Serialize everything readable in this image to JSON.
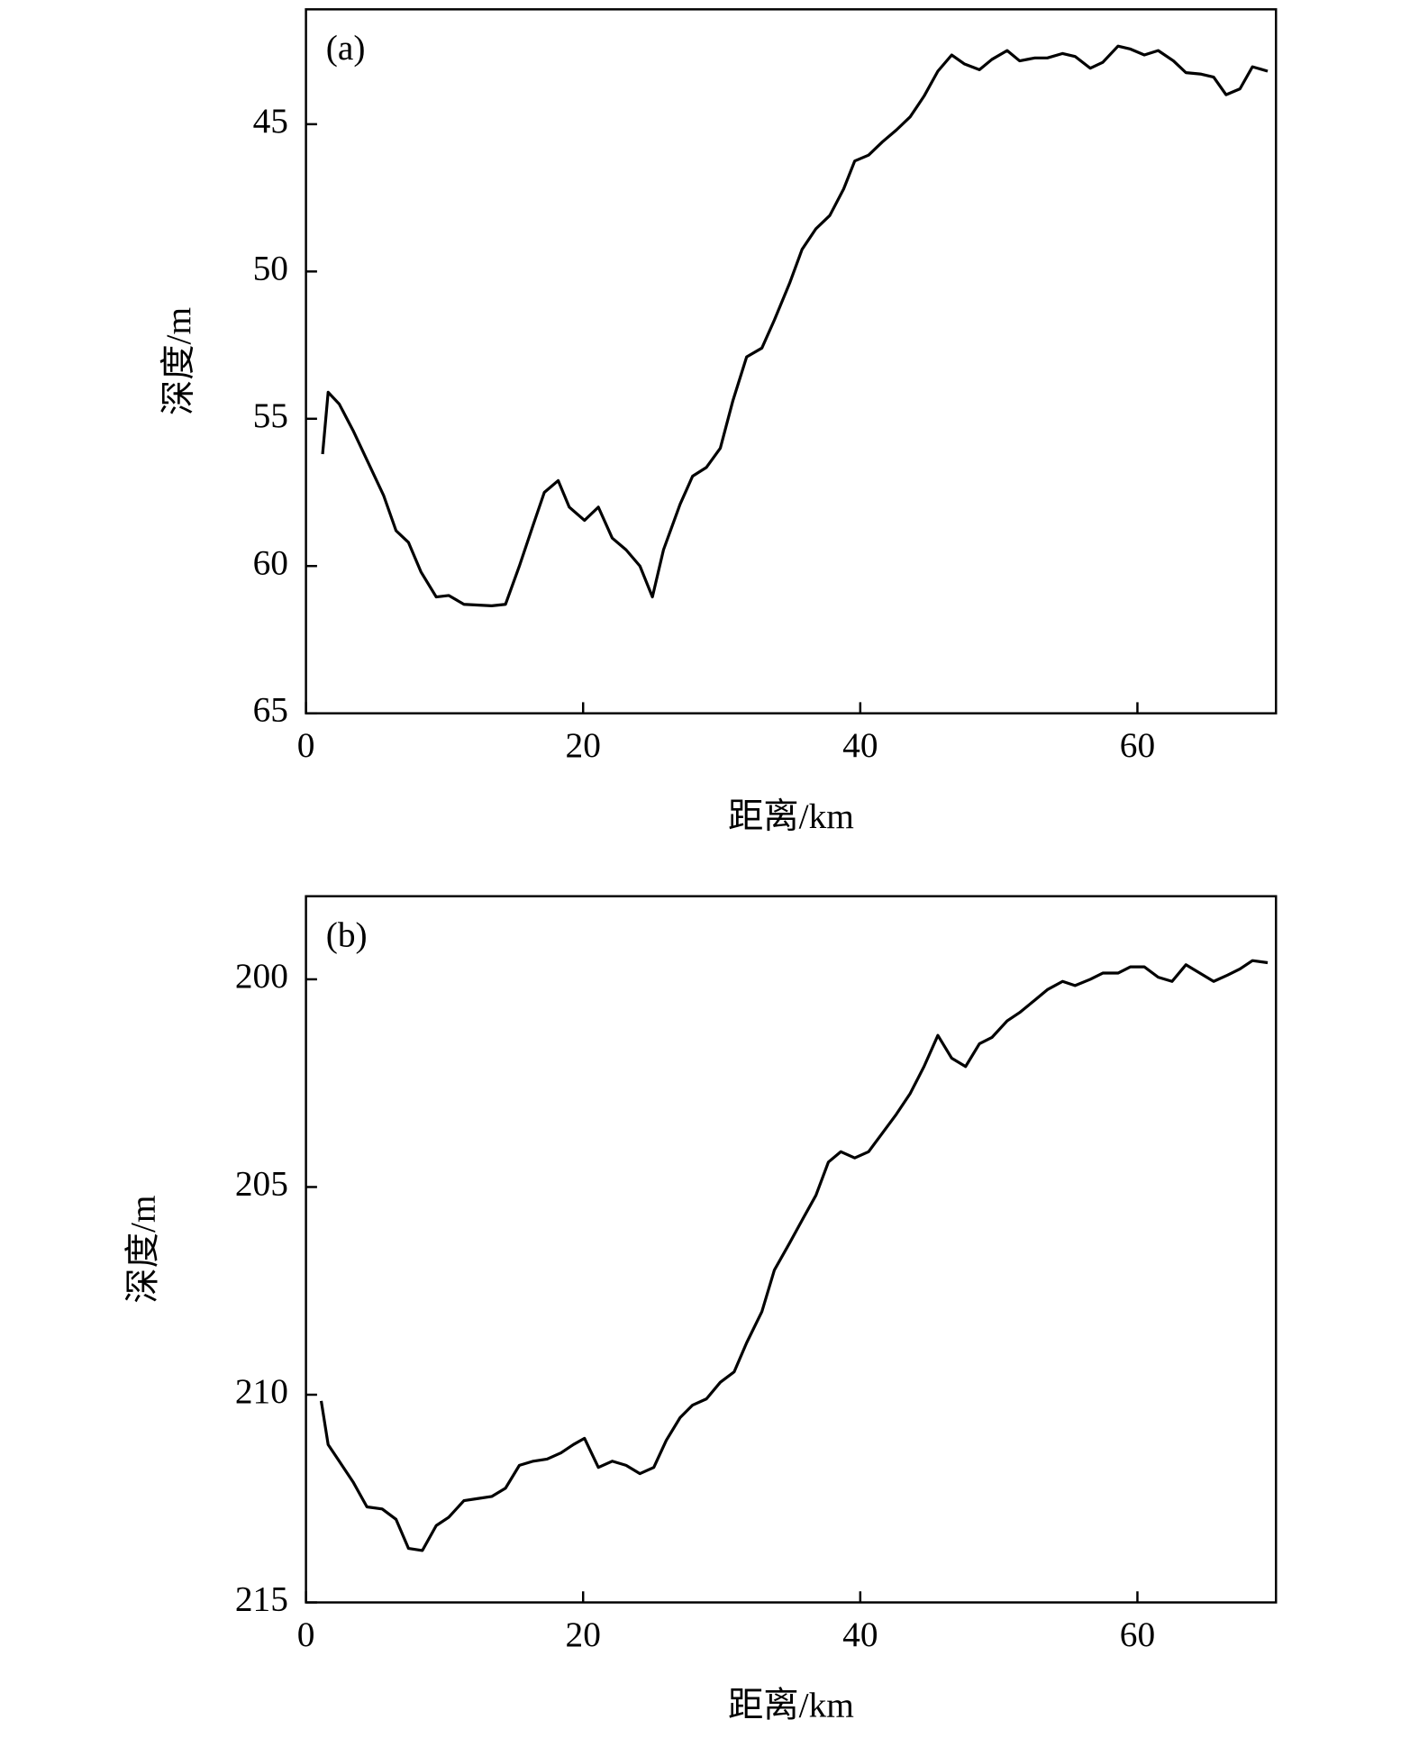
{
  "chart_data": [
    {
      "type": "line",
      "label": "(a)",
      "xlabel": "距离/km",
      "ylabel": "深度/m",
      "color": "#000000",
      "y_inverted": true,
      "xlim": [
        0,
        70
      ],
      "xticks": [
        0,
        20,
        40,
        60
      ],
      "ylim": [
        41.1,
        65
      ],
      "yticks": [
        45,
        50,
        55,
        60,
        65
      ],
      "x": [
        1.2,
        1.6,
        2.4,
        3.4,
        4.5,
        5.6,
        6.5,
        7.4,
        8.3,
        9.4,
        10.3,
        11.4,
        13.4,
        14.4,
        15.4,
        16.4,
        17.2,
        18.2,
        19.0,
        20.1,
        21.1,
        22.1,
        23.1,
        24.1,
        25.0,
        25.8,
        27.0,
        27.9,
        28.9,
        29.9,
        30.8,
        31.8,
        32.9,
        33.8,
        34.9,
        35.8,
        36.8,
        37.8,
        38.8,
        39.6,
        40.6,
        41.6,
        42.6,
        43.6,
        44.6,
        45.6,
        46.6,
        47.5,
        48.6,
        49.5,
        50.6,
        51.5,
        52.6,
        53.5,
        54.6,
        55.5,
        56.6,
        57.5,
        58.6,
        59.5,
        60.5,
        61.5,
        62.6,
        63.5,
        64.6,
        65.5,
        66.4,
        67.4,
        68.3,
        69.4
      ],
      "values": [
        56.2,
        54.1,
        54.5,
        55.4,
        56.5,
        57.6,
        58.8,
        59.2,
        60.2,
        61.05,
        61.0,
        61.3,
        61.35,
        61.3,
        60.0,
        58.6,
        57.5,
        57.1,
        58.0,
        58.45,
        58.0,
        59.05,
        59.45,
        60.0,
        61.05,
        59.45,
        57.9,
        56.95,
        56.65,
        56.0,
        54.4,
        52.9,
        52.6,
        51.65,
        50.4,
        49.25,
        48.55,
        48.1,
        47.2,
        46.25,
        46.05,
        45.6,
        45.2,
        44.75,
        44.05,
        43.2,
        42.65,
        42.95,
        43.15,
        42.8,
        42.5,
        42.85,
        42.75,
        42.75,
        42.6,
        42.7,
        43.1,
        42.9,
        42.35,
        42.45,
        42.65,
        42.5,
        42.85,
        43.25,
        43.3,
        43.4,
        44.0,
        43.8,
        43.05,
        43.2
      ]
    },
    {
      "type": "line",
      "label": "(b)",
      "xlabel": "距离/km",
      "ylabel": "深度/m",
      "color": "#000000",
      "y_inverted": true,
      "xlim": [
        0,
        70
      ],
      "xticks": [
        0,
        20,
        40,
        60
      ],
      "ylim": [
        198,
        215
      ],
      "yticks": [
        200,
        205,
        210,
        215
      ],
      "x": [
        1.1,
        1.6,
        2.4,
        3.4,
        4.4,
        5.5,
        6.5,
        7.4,
        8.4,
        9.4,
        10.3,
        11.4,
        12.4,
        13.4,
        14.4,
        15.4,
        16.4,
        17.4,
        18.4,
        19.3,
        20.1,
        21.1,
        22.1,
        23.1,
        24.1,
        25.1,
        26.0,
        27.0,
        27.9,
        28.9,
        29.9,
        30.9,
        31.8,
        32.9,
        33.8,
        34.9,
        35.8,
        36.8,
        37.7,
        38.6,
        39.6,
        40.6,
        41.6,
        42.6,
        43.6,
        44.6,
        45.6,
        46.6,
        47.6,
        48.6,
        49.5,
        50.6,
        51.5,
        52.6,
        53.5,
        54.6,
        55.5,
        56.6,
        57.5,
        58.6,
        59.5,
        60.5,
        61.5,
        62.5,
        63.5,
        64.5,
        65.5,
        66.5,
        67.4,
        68.3,
        69.4
      ],
      "values": [
        210.15,
        211.2,
        211.6,
        212.1,
        212.7,
        212.75,
        213.0,
        213.7,
        213.75,
        213.15,
        212.95,
        212.55,
        212.5,
        212.45,
        212.25,
        211.7,
        211.6,
        211.55,
        211.4,
        211.2,
        211.05,
        211.75,
        211.6,
        211.7,
        211.9,
        211.75,
        211.1,
        210.55,
        210.25,
        210.1,
        209.7,
        209.45,
        208.75,
        208.0,
        207.0,
        206.35,
        205.8,
        205.2,
        204.4,
        204.15,
        204.3,
        204.15,
        203.7,
        203.25,
        202.75,
        202.1,
        201.35,
        201.9,
        202.1,
        201.55,
        201.4,
        201.0,
        200.8,
        200.5,
        200.25,
        200.05,
        200.15,
        200.0,
        199.85,
        199.85,
        199.7,
        199.7,
        199.95,
        200.05,
        199.65,
        199.85,
        200.05,
        199.9,
        199.75,
        199.55,
        199.6
      ]
    }
  ]
}
